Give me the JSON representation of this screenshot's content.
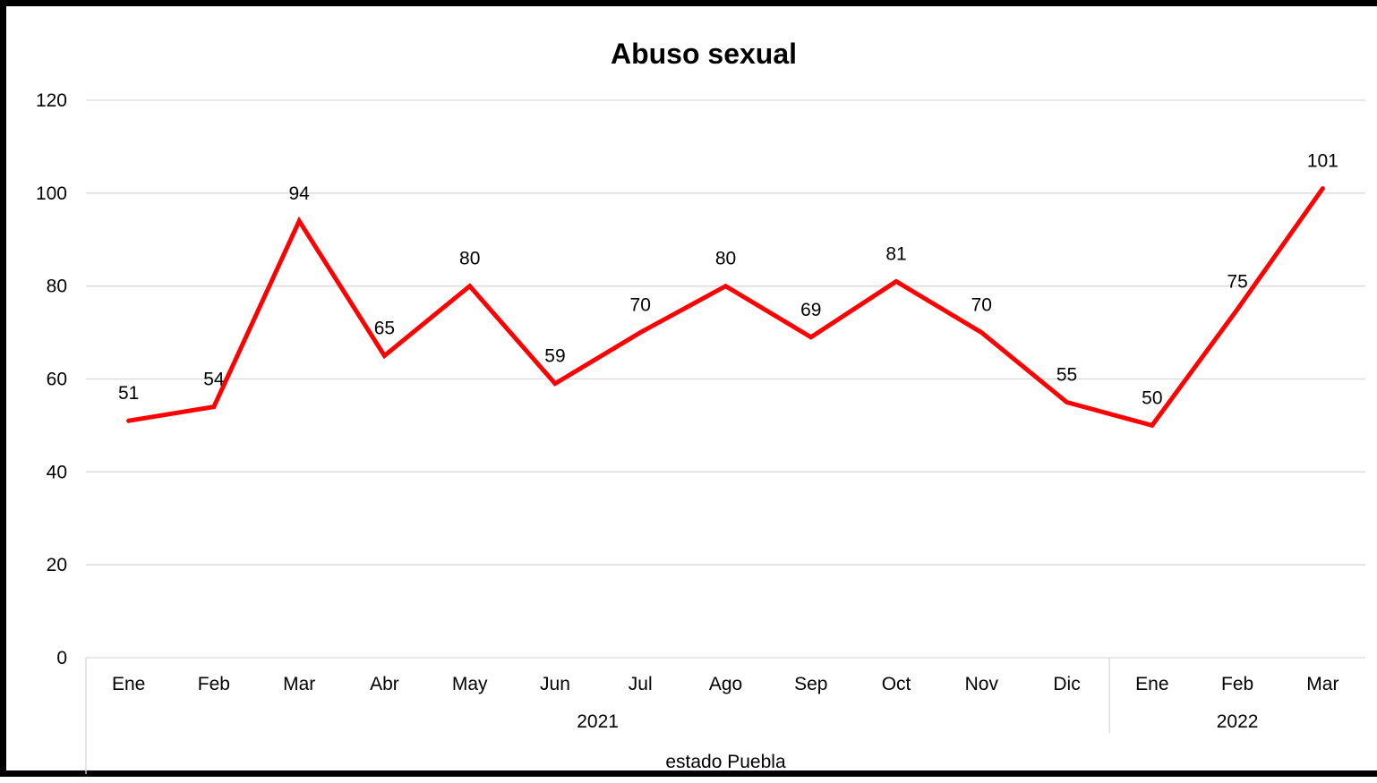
{
  "chart_data": {
    "type": "line",
    "title": "Abuso sexual",
    "ylim": [
      0,
      120
    ],
    "y_ticks": [
      "0",
      "20",
      "40",
      "60",
      "80",
      "100",
      "120"
    ],
    "grid": true,
    "legend": "none",
    "categories": [
      "Ene",
      "Feb",
      "Mar",
      "Abr",
      "May",
      "Jun",
      "Jul",
      "Ago",
      "Sep",
      "Oct",
      "Nov",
      "Dic",
      "Ene",
      "Feb",
      "Mar"
    ],
    "year_groups": [
      {
        "label": "2021",
        "count": 12
      },
      {
        "label": "2022",
        "count": 3
      }
    ],
    "outer_group": "estado Puebla",
    "series": [
      {
        "values": [
          51,
          54,
          94,
          65,
          80,
          59,
          70,
          80,
          69,
          81,
          70,
          55,
          50,
          75,
          101
        ],
        "color": "#ff0000"
      }
    ]
  }
}
